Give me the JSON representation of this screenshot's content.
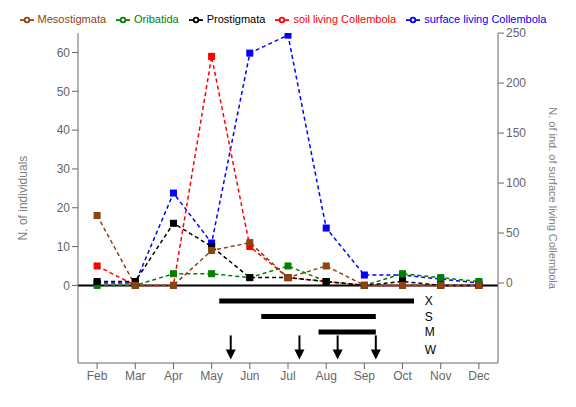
{
  "chart_data": {
    "type": "line",
    "categories": [
      "Feb",
      "Mar",
      "Apr",
      "May",
      "Jun",
      "Jul",
      "Aug",
      "Sep",
      "Oct",
      "Nov",
      "Dec"
    ],
    "series": [
      {
        "name": "surface living Collembola",
        "color": "#0000FF",
        "values": [
          0,
          0,
          90,
          40,
          230,
          248,
          55,
          8,
          8,
          4,
          0
        ],
        "axis": "y2"
      },
      {
        "name": "soil living Collembola",
        "color": "#FF0000",
        "values": [
          5,
          0,
          0,
          59,
          10,
          2,
          1,
          0,
          0,
          0,
          0
        ]
      },
      {
        "name": "Oribatida",
        "color": "#008000",
        "values": [
          0,
          0,
          3,
          3,
          2,
          5,
          1,
          0,
          3,
          2,
          1
        ]
      },
      {
        "name": "Prostigmata",
        "color": "#000000",
        "values": [
          1,
          1,
          16,
          10,
          2,
          2,
          1,
          0,
          1,
          0,
          0
        ]
      },
      {
        "name": "Mesostigmata",
        "color": "#8B4513",
        "values": [
          18,
          0,
          0,
          9,
          11,
          2,
          5,
          0,
          0,
          0,
          0
        ]
      }
    ],
    "ylabel": "N. of individuals",
    "y2label": "N. of ind.  of surface living Collembola",
    "ylim": [
      -20,
      65
    ],
    "yticks": [
      0,
      10,
      20,
      30,
      40,
      50,
      60
    ],
    "y2lim": [
      -80,
      250
    ],
    "y2ticks": [
      0,
      50,
      100,
      150,
      200,
      250
    ],
    "grid": false,
    "marker": "square",
    "line_style": "dashed",
    "annotations": [
      {
        "text": "X",
        "x": [
          3.2,
          8.3
        ]
      },
      {
        "text": "S",
        "x": [
          4.3,
          7.3
        ]
      },
      {
        "text": "M",
        "x": [
          5.8,
          7.3
        ]
      },
      {
        "text": "W",
        "arrows_x": [
          3.5,
          5.3,
          6.3,
          7.3
        ]
      }
    ]
  }
}
